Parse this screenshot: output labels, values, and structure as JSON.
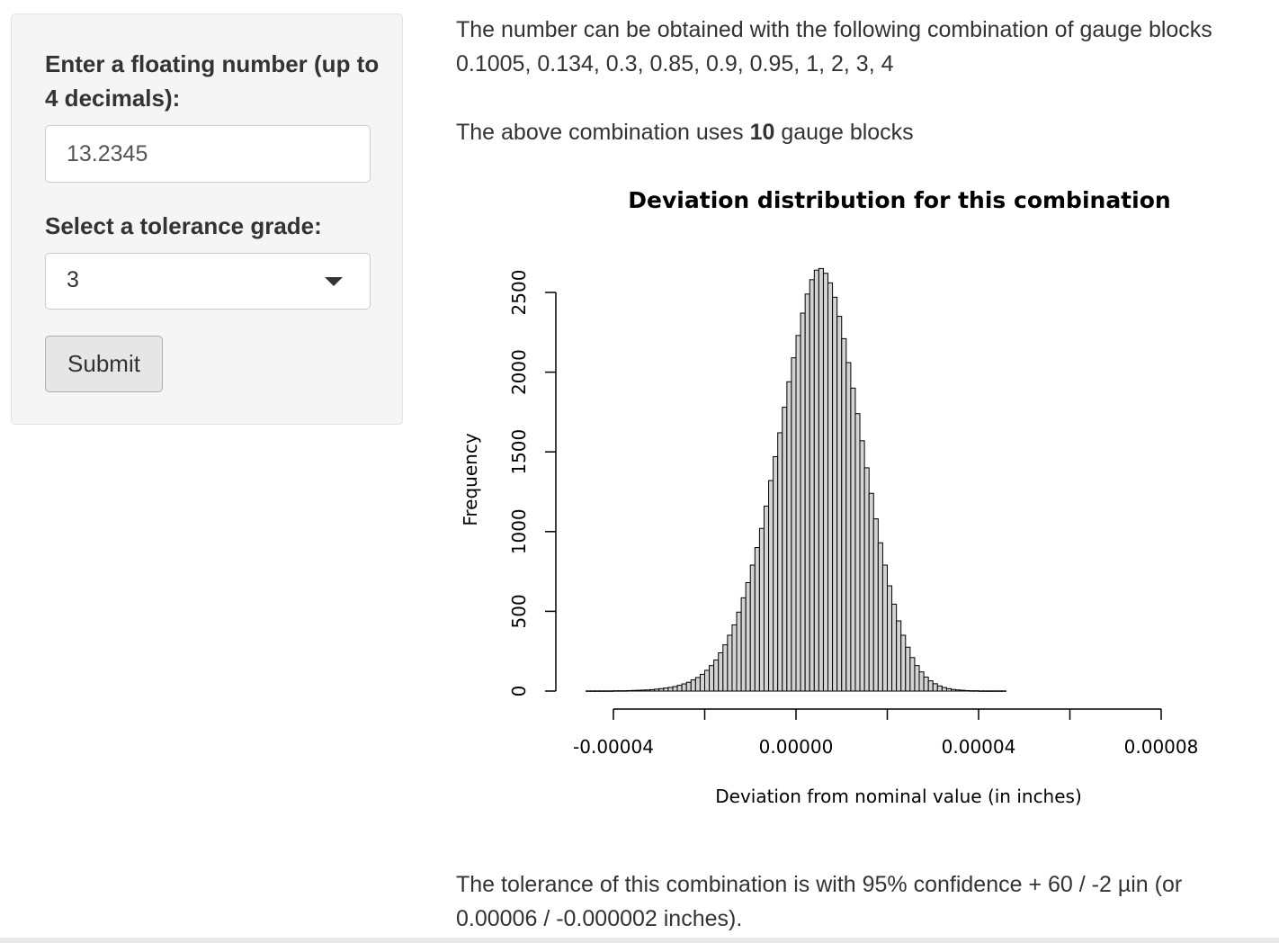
{
  "sidebar": {
    "number_label": "Enter a floating number (up to 4 decimals):",
    "number_value": "13.2345",
    "tolerance_label": "Select a tolerance grade:",
    "tolerance_value": "3",
    "submit_label": "Submit"
  },
  "main": {
    "combo_intro": "The number can be obtained with the following combination of gauge blocks",
    "combo_list": "0.1005, 0.134, 0.3, 0.85, 0.9, 0.95, 1, 2, 3, 4",
    "uses_prefix": "The above combination uses ",
    "uses_count": "10",
    "uses_suffix": " gauge blocks",
    "tolerance_line1": "The tolerance of this combination is with 95% confidence + 60 / -2 µin (or",
    "tolerance_line2": "0.00006 / -0.000002 inches)."
  },
  "chart_data": {
    "type": "bar",
    "title": "Deviation distribution for this combination",
    "xlabel": "Deviation from nominal value (in inches)",
    "ylabel": "Frequency",
    "xlim": [
      -4.6e-05,
      9.2e-05
    ],
    "ylim": [
      0,
      2500
    ],
    "x_ticks": [
      -4e-05,
      -2e-05,
      0,
      2e-05,
      4e-05,
      6e-05,
      8e-05
    ],
    "x_tick_labels": [
      "-0.00004",
      "0.00000",
      "0.00004",
      "0.00008"
    ],
    "x_tick_label_values": [
      -4e-05,
      0,
      4e-05,
      8e-05
    ],
    "y_ticks": [
      0,
      500,
      1000,
      1500,
      2000,
      2500
    ],
    "y_tick_labels": [
      "0",
      "500",
      "1000",
      "1500",
      "2000",
      "2500"
    ],
    "bin_start": -4.6e-05,
    "bin_width": 1e-06,
    "values": [
      1,
      1,
      1,
      1,
      1,
      1,
      2,
      2,
      2,
      3,
      4,
      5,
      6,
      7,
      9,
      12,
      15,
      19,
      23,
      28,
      36,
      45,
      55,
      70,
      85,
      105,
      130,
      160,
      195,
      240,
      290,
      350,
      415,
      495,
      585,
      680,
      790,
      900,
      1020,
      1160,
      1320,
      1470,
      1620,
      1780,
      1940,
      2090,
      2230,
      2370,
      2490,
      2580,
      2640,
      2650,
      2620,
      2560,
      2470,
      2350,
      2210,
      2060,
      1900,
      1740,
      1570,
      1400,
      1240,
      1080,
      930,
      790,
      660,
      545,
      440,
      350,
      275,
      210,
      160,
      120,
      88,
      64,
      46,
      32,
      22,
      15,
      10,
      7,
      5,
      3,
      2,
      2,
      1,
      1,
      1,
      1,
      1,
      1
    ]
  }
}
